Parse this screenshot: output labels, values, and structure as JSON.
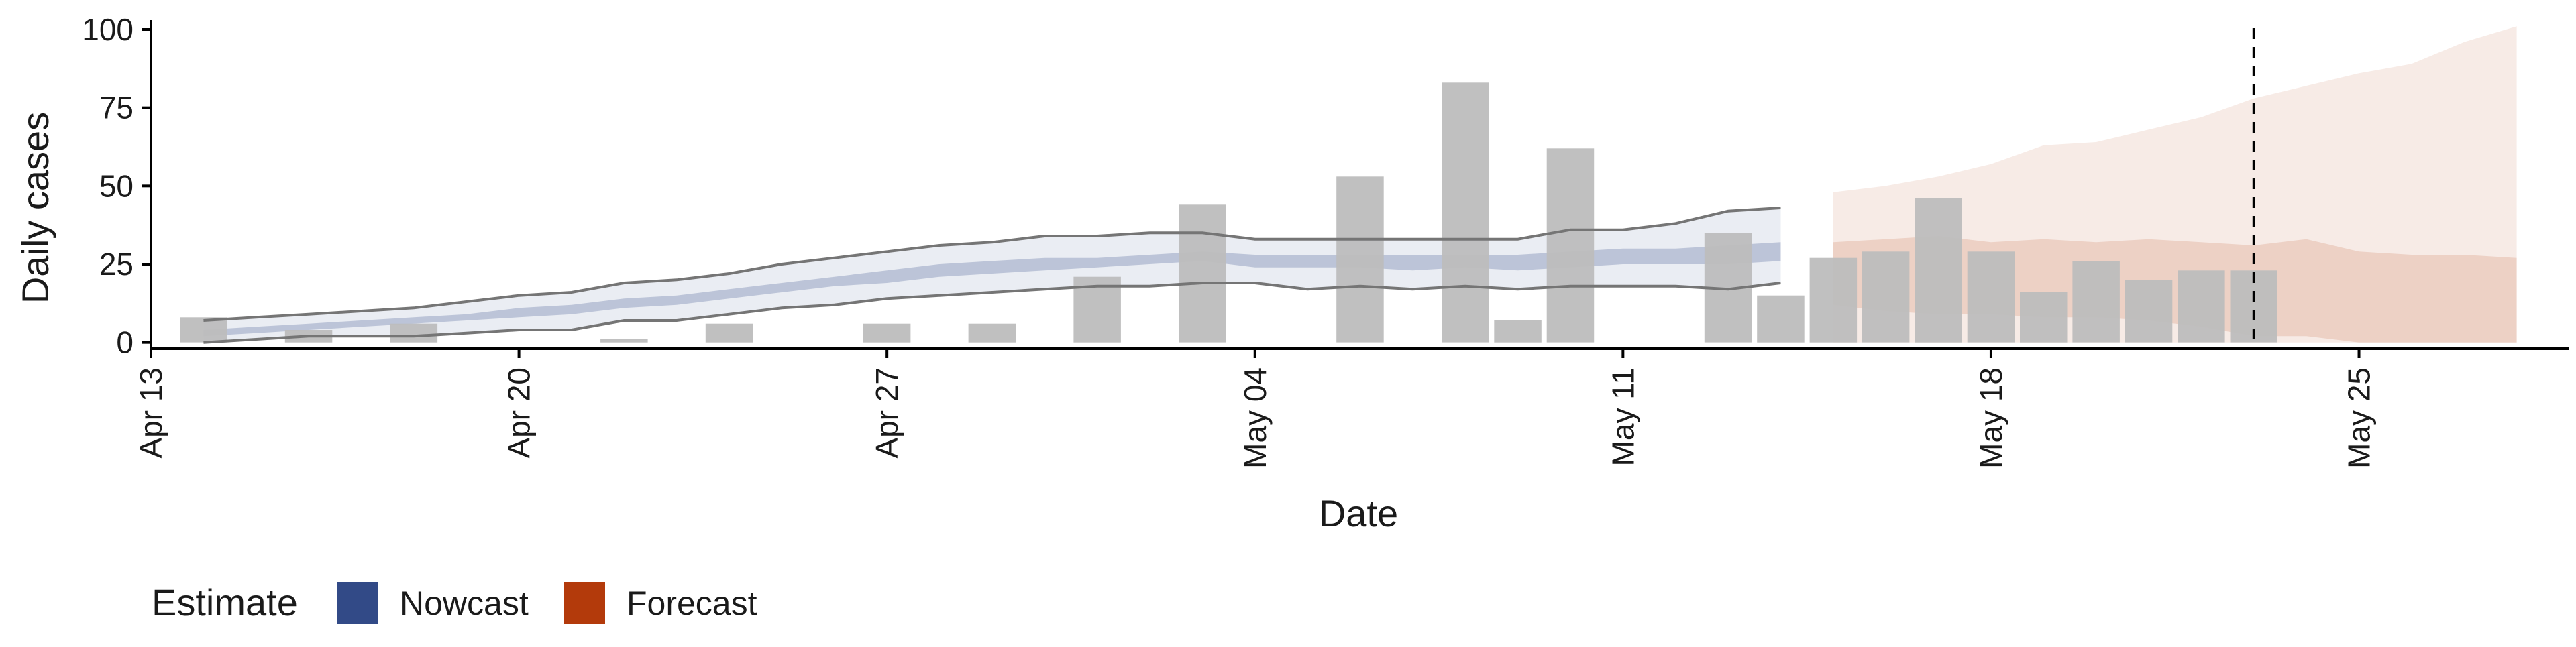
{
  "chart_data": {
    "type": "bar",
    "xlabel": "Date",
    "ylabel": "Daily cases",
    "ylim": [
      -2,
      103
    ],
    "xlim": [
      "2020-04-13",
      "2020-05-29"
    ],
    "y_ticks": [
      0,
      25,
      50,
      75,
      100
    ],
    "x_ticks": [
      {
        "date": "2020-04-13",
        "label": "Apr 13"
      },
      {
        "date": "2020-04-20",
        "label": "Apr 20"
      },
      {
        "date": "2020-04-27",
        "label": "Apr 27"
      },
      {
        "date": "2020-05-04",
        "label": "May 04"
      },
      {
        "date": "2020-05-11",
        "label": "May 11"
      },
      {
        "date": "2020-05-18",
        "label": "May 18"
      },
      {
        "date": "2020-05-25",
        "label": "May 25"
      }
    ],
    "grid": false,
    "reference_line": {
      "date": "2020-05-23",
      "style": "dashed"
    },
    "observed_cases": [
      {
        "date": "2020-04-14",
        "value": 8
      },
      {
        "date": "2020-04-15",
        "value": 0
      },
      {
        "date": "2020-04-16",
        "value": 4
      },
      {
        "date": "2020-04-17",
        "value": 0
      },
      {
        "date": "2020-04-18",
        "value": 6
      },
      {
        "date": "2020-04-19",
        "value": 0
      },
      {
        "date": "2020-04-20",
        "value": 0
      },
      {
        "date": "2020-04-21",
        "value": 0
      },
      {
        "date": "2020-04-22",
        "value": 1
      },
      {
        "date": "2020-04-23",
        "value": 0
      },
      {
        "date": "2020-04-24",
        "value": 6
      },
      {
        "date": "2020-04-25",
        "value": 0
      },
      {
        "date": "2020-04-26",
        "value": 0
      },
      {
        "date": "2020-04-27",
        "value": 6
      },
      {
        "date": "2020-04-28",
        "value": 0
      },
      {
        "date": "2020-04-29",
        "value": 6
      },
      {
        "date": "2020-04-30",
        "value": 0
      },
      {
        "date": "2020-05-01",
        "value": 21
      },
      {
        "date": "2020-05-02",
        "value": 0
      },
      {
        "date": "2020-05-03",
        "value": 44
      },
      {
        "date": "2020-05-04",
        "value": 0
      },
      {
        "date": "2020-05-05",
        "value": 0
      },
      {
        "date": "2020-05-06",
        "value": 53
      },
      {
        "date": "2020-05-07",
        "value": 0
      },
      {
        "date": "2020-05-08",
        "value": 83
      },
      {
        "date": "2020-05-09",
        "value": 7
      },
      {
        "date": "2020-05-10",
        "value": 62
      },
      {
        "date": "2020-05-11",
        "value": 0
      },
      {
        "date": "2020-05-12",
        "value": 0
      },
      {
        "date": "2020-05-13",
        "value": 35
      },
      {
        "date": "2020-05-14",
        "value": 15
      },
      {
        "date": "2020-05-15",
        "value": 27
      },
      {
        "date": "2020-05-16",
        "value": 29
      },
      {
        "date": "2020-05-17",
        "value": 46
      },
      {
        "date": "2020-05-18",
        "value": 29
      },
      {
        "date": "2020-05-19",
        "value": 16
      },
      {
        "date": "2020-05-20",
        "value": 26
      },
      {
        "date": "2020-05-21",
        "value": 20
      },
      {
        "date": "2020-05-22",
        "value": 23
      },
      {
        "date": "2020-05-23",
        "value": 23
      }
    ],
    "series": [
      {
        "name": "Nowcast",
        "color": "#324A87",
        "x": [
          "2020-04-14",
          "2020-04-15",
          "2020-04-16",
          "2020-04-17",
          "2020-04-18",
          "2020-04-19",
          "2020-04-20",
          "2020-04-21",
          "2020-04-22",
          "2020-04-23",
          "2020-04-24",
          "2020-04-25",
          "2020-04-26",
          "2020-04-27",
          "2020-04-28",
          "2020-04-29",
          "2020-04-30",
          "2020-05-01",
          "2020-05-02",
          "2020-05-03",
          "2020-05-04",
          "2020-05-05",
          "2020-05-06",
          "2020-05-07",
          "2020-05-08",
          "2020-05-09",
          "2020-05-10",
          "2020-05-11",
          "2020-05-12",
          "2020-05-13",
          "2020-05-14"
        ],
        "band90_lower": [
          0,
          1,
          2,
          2,
          2,
          3,
          4,
          4,
          7,
          7,
          9,
          11,
          12,
          14,
          15,
          16,
          17,
          18,
          18,
          19,
          19,
          17,
          18,
          17,
          18,
          17,
          18,
          18,
          18,
          17,
          19
        ],
        "band90_upper": [
          7,
          8,
          9,
          10,
          11,
          13,
          15,
          16,
          19,
          20,
          22,
          25,
          27,
          29,
          31,
          32,
          34,
          34,
          35,
          35,
          33,
          33,
          33,
          33,
          33,
          33,
          36,
          36,
          38,
          42,
          43
        ],
        "band50_lower": [
          2,
          3,
          4,
          5,
          6,
          7,
          8,
          9,
          11,
          12,
          14,
          16,
          18,
          19,
          21,
          22,
          23,
          24,
          25,
          26,
          24,
          24,
          24,
          23,
          24,
          23,
          24,
          25,
          25,
          25,
          26
        ],
        "band50_upper": [
          4,
          5,
          6,
          7,
          8,
          9,
          11,
          12,
          14,
          15,
          17,
          19,
          21,
          23,
          25,
          26,
          27,
          27,
          28,
          29,
          28,
          28,
          28,
          28,
          28,
          28,
          29,
          30,
          30,
          31,
          32
        ]
      },
      {
        "name": "Forecast",
        "color": "#B33A0B",
        "x": [
          "2020-05-15",
          "2020-05-16",
          "2020-05-17",
          "2020-05-18",
          "2020-05-19",
          "2020-05-20",
          "2020-05-21",
          "2020-05-22",
          "2020-05-23",
          "2020-05-24",
          "2020-05-25",
          "2020-05-26",
          "2020-05-27",
          "2020-05-28"
        ],
        "band90_lower": [
          0,
          0,
          0,
          0,
          0,
          0,
          0,
          0,
          0,
          0,
          0,
          0,
          0,
          0
        ],
        "band90_upper": [
          48,
          50,
          53,
          57,
          63,
          64,
          68,
          72,
          78,
          82,
          86,
          89,
          96,
          101
        ],
        "band50_lower": [
          12,
          10,
          9,
          9,
          8,
          8,
          7,
          5,
          2,
          2,
          0,
          0,
          0,
          0
        ],
        "band50_upper": [
          32,
          33,
          34,
          32,
          33,
          32,
          33,
          32,
          31,
          33,
          29,
          28,
          28,
          27
        ]
      }
    ],
    "legend": {
      "title": "Estimate",
      "placement": "bottom-left",
      "items": [
        {
          "label": "Nowcast",
          "color": "#324A87"
        },
        {
          "label": "Forecast",
          "color": "#B33A0B"
        }
      ]
    },
    "colors": {
      "bar": "#BDBDBD",
      "bound_line": "#757575",
      "reference_line": "#000000",
      "axis": "#000000"
    }
  }
}
